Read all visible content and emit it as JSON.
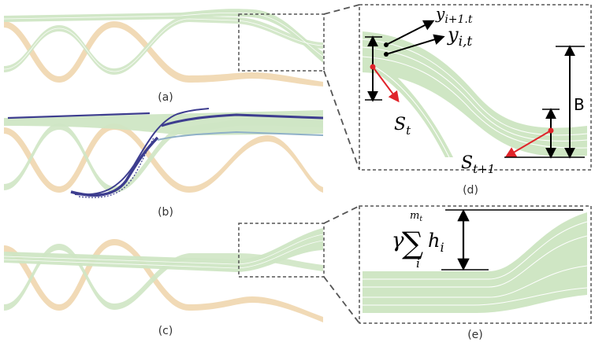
{
  "panels": {
    "a": "(a)",
    "b": "(b)",
    "c": "(c)",
    "d": "(d)",
    "e": "(e)"
  },
  "annotations": {
    "y_next": "y",
    "y_next_sub": "i+1.t",
    "y_cur": "y",
    "y_cur_sub": "i,t",
    "s_t": "S",
    "s_t_sub": "t",
    "s_next": "S",
    "s_next_sub": "t+1",
    "b_label": "B",
    "gamma": "γ",
    "sigma": "∑",
    "sigma_top": "m",
    "sigma_top_sub": "t",
    "sigma_bottom": "i",
    "h": "h",
    "h_sub": "i"
  },
  "colors": {
    "green_band": "#cfe6c4",
    "orange_band": "#f0d6ae",
    "blue_line": "#3d3d8f",
    "light_blue_line": "#8fb0c8",
    "red_arrow": "#e0242a",
    "black_arrow": "#000000",
    "dashed_box": "#555555"
  }
}
